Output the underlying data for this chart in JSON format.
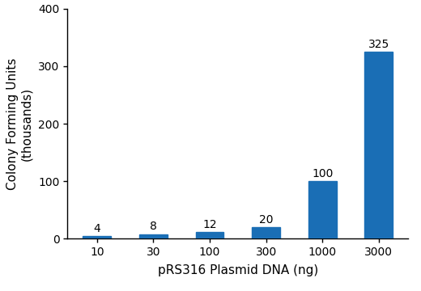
{
  "categories": [
    "10",
    "30",
    "100",
    "300",
    "1000",
    "3000"
  ],
  "values": [
    4,
    8,
    12,
    20,
    100,
    325
  ],
  "bar_color": "#1a6eb5",
  "xlabel": "pRS316 Plasmid DNA (ng)",
  "ylabel": "Colony Forming Units\n(thousands)",
  "ylim": [
    0,
    400
  ],
  "yticks": [
    0,
    100,
    200,
    300,
    400
  ],
  "background_color": "#ffffff",
  "label_fontsize": 11,
  "tick_fontsize": 10,
  "annotation_fontsize": 10,
  "bar_width": 0.5
}
